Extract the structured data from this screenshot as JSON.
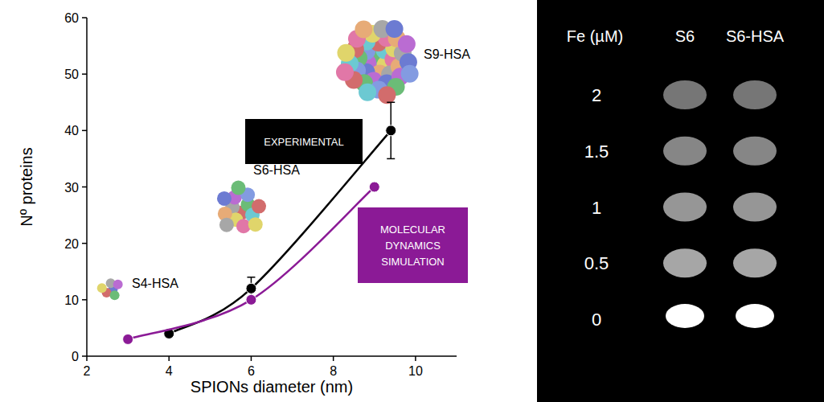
{
  "chart_data": [
    {
      "type": "line",
      "x_label": "SPIONs diameter (nm)",
      "y_label": "Nº proteins",
      "xlim": [
        2,
        11
      ],
      "xticks": [
        2,
        4,
        6,
        8,
        10
      ],
      "ylim": [
        0,
        60
      ],
      "yticks": [
        0,
        10,
        20,
        30,
        40,
        50,
        60
      ],
      "grid": false,
      "annotations": [
        "S4-HSA",
        "S6-HSA",
        "S9-HSA"
      ],
      "series": [
        {
          "name": "EXPERIMENTAL",
          "color": "#000000",
          "marker": "circle",
          "line_style": "solid",
          "x": [
            4,
            6,
            9.4
          ],
          "values": [
            4,
            12,
            40
          ],
          "errors": [
            null,
            2,
            5
          ]
        },
        {
          "name": "MOLECULAR DYNAMICS SIMULATION",
          "color": "#8b1a96",
          "marker": "circle",
          "line_style": "solid",
          "x": [
            3,
            6,
            9
          ],
          "values": [
            3,
            10,
            30
          ]
        }
      ]
    },
    {
      "type": "image_grid",
      "row_title": "Fe (µM)",
      "columns": [
        "S6",
        "S6-HSA"
      ],
      "rows": [
        2,
        1.5,
        1,
        0.5,
        0
      ]
    }
  ]
}
